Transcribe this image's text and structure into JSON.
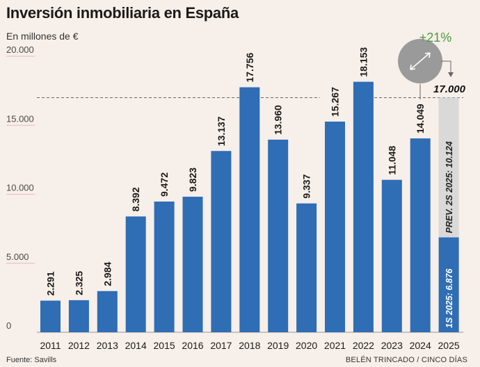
{
  "title": "Inversión inmobiliaria en España",
  "subtitle": "En millones de €",
  "source": "Fuente: Savills",
  "credit": "BELÉN TRINCADO / CINCO DÍAS",
  "colors": {
    "bar": "#2f6db5",
    "forecast": "#d9d9d9",
    "background": "#f7efe9",
    "growth": "#4a9a3c",
    "circle": "#9a9a9a"
  },
  "chart_data": {
    "type": "bar",
    "title": "Inversión inmobiliaria en España",
    "ylabel": "En millones de €",
    "xlabel": "",
    "ylim": [
      0,
      20000
    ],
    "yticks": [
      "0",
      "5.000",
      "10.000",
      "15.000",
      "20.000"
    ],
    "grid": false,
    "categories": [
      "2011",
      "2012",
      "2013",
      "2014",
      "2015",
      "2016",
      "2017",
      "2018",
      "2019",
      "2020",
      "2021",
      "2022",
      "2023",
      "2024"
    ],
    "values": [
      2291,
      2325,
      2984,
      8392,
      9472,
      9823,
      13137,
      17756,
      13960,
      9337,
      15267,
      18153,
      11048,
      14049
    ],
    "value_labels": [
      "2.291",
      "2.325",
      "2.984",
      "8.392",
      "9.472",
      "9.823",
      "13.137",
      "17.756",
      "13.960",
      "9.337",
      "15.267",
      "18.153",
      "11.048",
      "14.049"
    ],
    "stacked_last": {
      "category": "2025",
      "actual_value": 6876,
      "actual_label": "1S 2025: 6.876",
      "forecast_value": 10124,
      "forecast_label": "PREV. 2S 2025: 10.124",
      "total_value": 17000,
      "total_label": "17.000"
    },
    "growth_annotation": "+21%",
    "reference_line_value": 17000
  }
}
